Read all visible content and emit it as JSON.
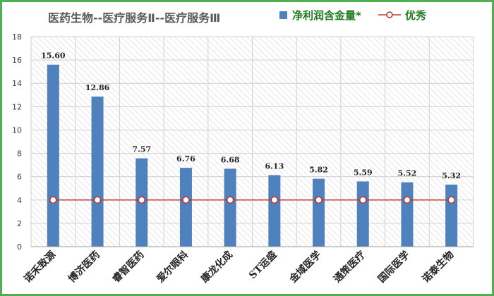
{
  "chart_data": {
    "type": "bar",
    "title": "医药生物--医疗服务Ⅱ--医疗服务Ⅲ",
    "categories": [
      "诺禾致源",
      "博济医药",
      "睿智医药",
      "爱尔眼科",
      "康龙化成",
      "ST运盛",
      "金域医学",
      "通策医疗",
      "国际医学",
      "诺泰生物"
    ],
    "series": [
      {
        "name": "净利润含金量*",
        "type": "bar",
        "color": "#4f81bd",
        "values": [
          15.6,
          12.86,
          7.57,
          6.76,
          6.68,
          6.13,
          5.82,
          5.59,
          5.52,
          5.32
        ],
        "labels": [
          "15.60",
          "12.86",
          "7.57",
          "6.76",
          "6.68",
          "6.13",
          "5.82",
          "5.59",
          "5.52",
          "5.32"
        ]
      },
      {
        "name": "优秀",
        "type": "line",
        "color": "#c0392b",
        "values": [
          4,
          4,
          4,
          4,
          4,
          4,
          4,
          4,
          4,
          4
        ]
      }
    ],
    "ylim": [
      0,
      18
    ],
    "yticks": [
      "0",
      "2",
      "4",
      "6",
      "8",
      "10",
      "12",
      "14",
      "16",
      "18"
    ],
    "grid": true,
    "legend_position": "top-right"
  }
}
